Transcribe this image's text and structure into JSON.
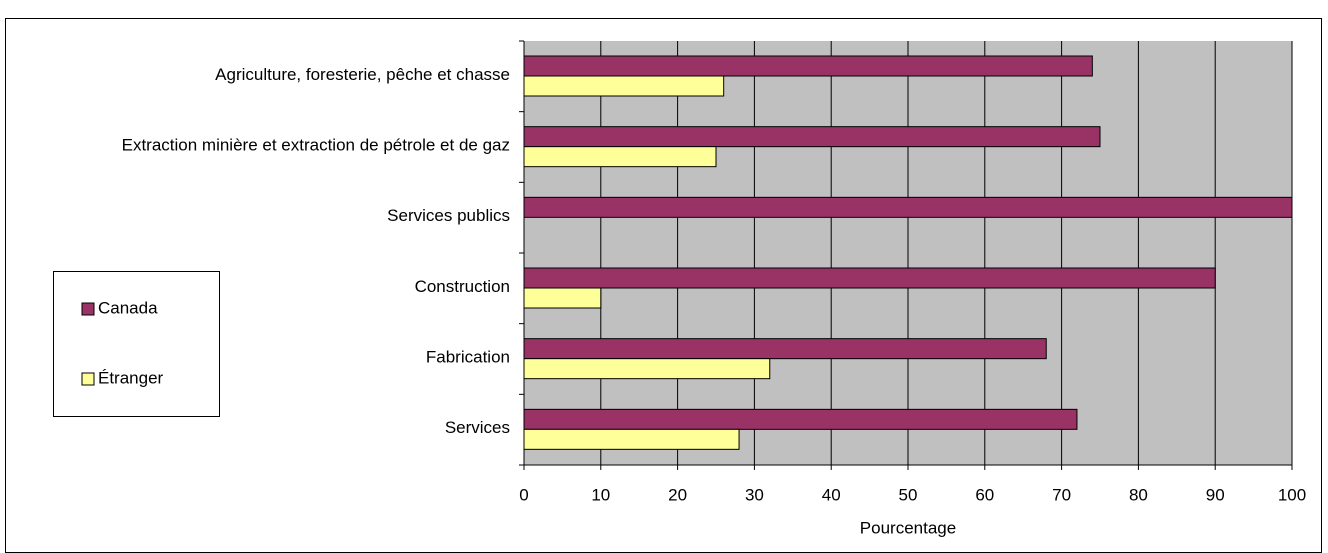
{
  "chart_data": {
    "type": "barh",
    "categories": [
      "Agriculture, foresterie, pêche et chasse",
      "Extraction minière et extraction de pétrole et de gaz",
      "Services publics",
      "Construction",
      "Fabrication",
      "Services"
    ],
    "series": [
      {
        "name": "Canada",
        "color": "#993366",
        "values": [
          74,
          75,
          100,
          90,
          68,
          72
        ]
      },
      {
        "name": "Étranger",
        "color": "#ffff99",
        "values": [
          26,
          25,
          0,
          10,
          32,
          28
        ]
      }
    ],
    "xlabel": "Pourcentage",
    "xlim": [
      0,
      100
    ],
    "xticks": [
      0,
      10,
      20,
      30,
      40,
      50,
      60,
      70,
      80,
      90,
      100
    ],
    "grid": true,
    "legend": "left"
  }
}
